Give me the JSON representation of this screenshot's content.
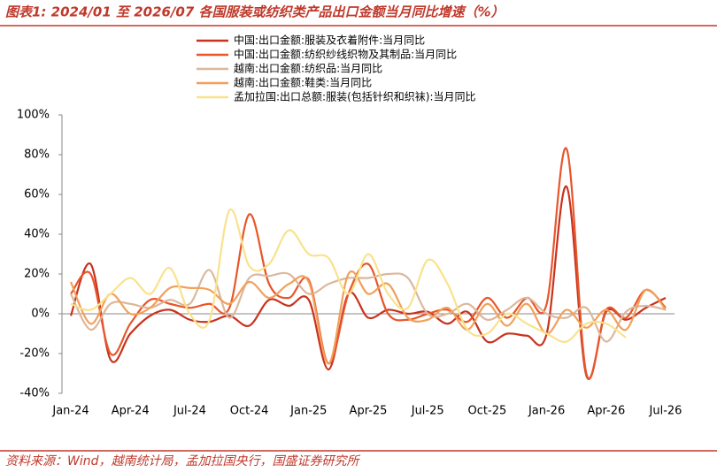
{
  "title": "图表1:  2024/01 至 2026/07 各国服装或纺织类产品出口金额当月同比增速（%）",
  "source": "资料来源：Wind，越南统计局，孟加拉国央行，国盛证券研究所",
  "chart_data": {
    "type": "line",
    "categories": [
      "Jan-24",
      null,
      null,
      "Apr-24",
      null,
      null,
      "Jul-24",
      null,
      null,
      "Oct-24",
      null,
      null,
      "Jan-25",
      null,
      null,
      "Apr-25",
      null,
      null,
      "Jul-25",
      null,
      null,
      "Oct-25",
      null,
      null,
      "Jan-26",
      null,
      null,
      "Apr-26",
      null,
      null,
      "Jul-26"
    ],
    "ylim": [
      -40,
      100
    ],
    "yticks": [
      {
        "value": -40,
        "label": "-40%"
      },
      {
        "value": -20,
        "label": "-20%"
      },
      {
        "value": 0,
        "label": "0%"
      },
      {
        "value": 20,
        "label": "20%"
      },
      {
        "value": 40,
        "label": "40%"
      },
      {
        "value": 60,
        "label": "60%"
      },
      {
        "value": 80,
        "label": "80%"
      },
      {
        "value": 100,
        "label": "100%"
      }
    ],
    "grid": false,
    "series": [
      {
        "name": "中国:出口金额:服装及衣着附件:当月同比",
        "color": "#c8321e",
        "values": [
          -1,
          25,
          -23,
          -10,
          -1,
          2,
          -3,
          -4,
          -1,
          -6,
          7,
          4,
          7,
          -28,
          10,
          -2,
          2,
          0,
          1,
          -5,
          1,
          -14,
          -10,
          -11,
          -10,
          64,
          -31,
          1,
          -3,
          3,
          8
        ]
      },
      {
        "name": "中国:出口金额:纺织纱线织物及其制品:当月同比",
        "color": "#e8562a",
        "values": [
          10,
          20,
          -20,
          -5,
          7,
          5,
          3,
          5,
          3,
          50,
          15,
          8,
          17,
          -25,
          10,
          25,
          0,
          -3,
          0,
          2,
          -4,
          8,
          -2,
          8,
          5,
          83,
          -30,
          2,
          -2,
          12,
          3
        ]
      },
      {
        "name": "越南:出口金额:纺织品:当月同比",
        "color": "#dcb89c",
        "values": [
          10,
          -8,
          5,
          5,
          3,
          7,
          5,
          22,
          -2,
          18,
          19,
          20,
          10,
          15,
          18,
          18,
          20,
          18,
          0,
          0,
          5,
          -3,
          2,
          8,
          0,
          -2,
          3,
          -14,
          1,
          4,
          2
        ]
      },
      {
        "name": "越南:出口金额:鞋类:当月同比",
        "color": "#f2a05a",
        "values": [
          16,
          -5,
          10,
          0,
          3,
          13,
          13,
          12,
          5,
          16,
          8,
          15,
          16,
          -25,
          20,
          10,
          15,
          -2,
          -3,
          3,
          -8,
          5,
          -6,
          5,
          -10,
          2,
          -7,
          2,
          -8,
          12,
          2
        ]
      },
      {
        "name": "孟加拉国:出口总额:服装(包括针织和织袜):当月同比",
        "color": "#f9e28c",
        "values": [
          5,
          2,
          10,
          18,
          10,
          23,
          0,
          -3,
          52,
          24,
          25,
          42,
          30,
          28,
          10,
          30,
          10,
          3,
          27,
          15,
          -8,
          -10,
          0,
          -5,
          -10,
          -14,
          -5,
          -5,
          -12,
          null,
          null
        ]
      }
    ]
  }
}
